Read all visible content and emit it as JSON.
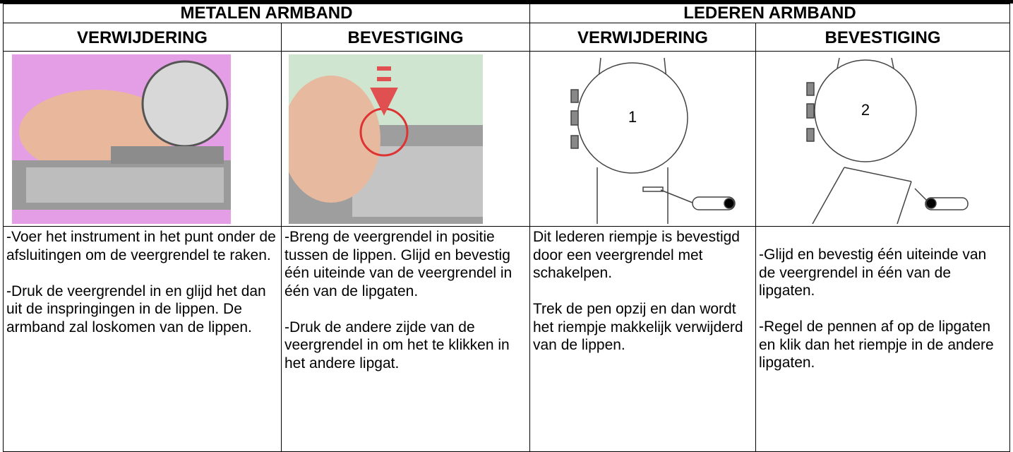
{
  "header": {
    "groups": [
      "METALEN ARMBAND",
      "LEDEREN ARMBAND"
    ]
  },
  "columns": [
    {
      "title": "VERWIJDERING",
      "paragraphs": [
        "-Voer het instrument in het punt onder de afsluitingen om de veergrendel te raken.",
        "-Druk de veergrendel in en glijd het dan uit de inspringingen in de lippen. De armband zal loskomen van de lippen."
      ]
    },
    {
      "title": "BEVESTIGING",
      "paragraphs": [
        "-Breng de veergrendel in positie tussen de lippen. Glijd en bevestig één uiteinde van de veergrendel in één van de lipgaten.",
        "-Druk de andere zijde van de veergrendel in om het te klikken in het andere lipgat."
      ]
    },
    {
      "title": "VERWIJDERING",
      "image_label": "1",
      "paragraphs": [
        "Dit lederen riempje is bevestigd door een veergrendel met schakelpen.",
        "Trek de pen opzij en dan wordt het riempje makkelijk verwijderd van de lippen."
      ]
    },
    {
      "title": "BEVESTIGING",
      "image_label": "2",
      "paragraphs": [
        "-Glijd en bevestig één uiteinde van de veergrendel in één van de lipgaten.",
        "-Regel de pennen af op de lipgaten en klik dan het riempje in de andere lipgaten."
      ]
    }
  ]
}
